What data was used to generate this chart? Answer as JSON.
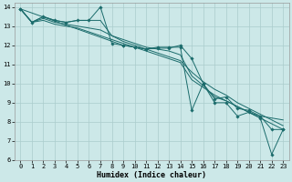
{
  "title": "",
  "xlabel": "Humidex (Indice chaleur)",
  "ylabel": "",
  "bg_color": "#cce8e8",
  "grid_color": "#aacccc",
  "line_color": "#1a6b6b",
  "xlim": [
    -0.5,
    23.5
  ],
  "ylim": [
    6,
    14.2
  ],
  "yticks": [
    6,
    7,
    8,
    9,
    10,
    11,
    12,
    13,
    14
  ],
  "xticks": [
    0,
    1,
    2,
    3,
    4,
    5,
    6,
    7,
    8,
    9,
    10,
    11,
    12,
    13,
    14,
    15,
    16,
    17,
    18,
    19,
    20,
    21,
    22,
    23
  ],
  "lines": [
    {
      "x": [
        0,
        1,
        2,
        3,
        4,
        5,
        6,
        7,
        8,
        9,
        10,
        11,
        12,
        13,
        14,
        15,
        16,
        17,
        18,
        19,
        20,
        21,
        22,
        23
      ],
      "y": [
        13.9,
        13.2,
        13.5,
        13.3,
        13.2,
        13.3,
        13.3,
        14.0,
        12.1,
        12.0,
        11.9,
        11.8,
        11.9,
        11.9,
        11.9,
        8.6,
        10.0,
        9.0,
        9.0,
        8.3,
        8.5,
        8.2,
        6.3,
        7.6
      ],
      "marker": true
    },
    {
      "x": [
        0,
        1,
        2,
        3,
        4,
        5,
        6,
        7,
        8,
        9,
        10,
        11,
        12,
        13,
        14,
        15,
        16,
        17,
        18,
        19,
        20,
        21,
        22,
        23
      ],
      "y": [
        13.9,
        13.2,
        13.5,
        13.3,
        13.2,
        13.3,
        13.3,
        13.3,
        12.5,
        12.3,
        12.1,
        11.9,
        11.8,
        11.7,
        11.5,
        10.4,
        9.9,
        9.3,
        9.1,
        8.8,
        8.5,
        8.3,
        8.2,
        8.1
      ],
      "marker": false
    },
    {
      "x": [
        0,
        1,
        2,
        3,
        4,
        5,
        6,
        7,
        8,
        9,
        10,
        11,
        12,
        13,
        14,
        15,
        16,
        17,
        18,
        19,
        20,
        21,
        22,
        23
      ],
      "y": [
        13.9,
        13.2,
        13.4,
        13.2,
        13.1,
        13.0,
        12.9,
        12.8,
        12.5,
        12.2,
        12.0,
        11.8,
        11.6,
        11.4,
        11.2,
        10.6,
        10.1,
        9.7,
        9.4,
        9.0,
        8.7,
        8.4,
        8.1,
        7.8
      ],
      "marker": false
    },
    {
      "x": [
        0,
        1,
        2,
        3,
        4,
        5,
        6,
        7,
        8,
        9,
        10,
        11,
        12,
        13,
        14,
        15,
        16,
        17,
        18,
        19,
        20,
        21,
        22,
        23
      ],
      "y": [
        13.9,
        13.2,
        13.3,
        13.1,
        13.0,
        12.9,
        12.7,
        12.5,
        12.3,
        12.1,
        11.9,
        11.7,
        11.5,
        11.3,
        11.1,
        10.2,
        9.8,
        9.4,
        9.1,
        8.8,
        8.5,
        8.2,
        7.9,
        7.6
      ],
      "marker": false
    },
    {
      "x": [
        0,
        9,
        10,
        11,
        12,
        13,
        14,
        15,
        16,
        17,
        18,
        19,
        20,
        21,
        22,
        23
      ],
      "y": [
        13.9,
        12.0,
        11.9,
        11.8,
        11.85,
        11.85,
        12.0,
        11.3,
        10.0,
        9.2,
        9.3,
        8.7,
        8.6,
        8.3,
        7.6,
        7.6
      ],
      "marker": true
    }
  ],
  "xlabel_fontsize": 6.0,
  "tick_fontsize": 5.0,
  "tick_fontfamily": "monospace",
  "xlabel_fontfamily": "monospace",
  "xlabel_fontweight": "bold"
}
